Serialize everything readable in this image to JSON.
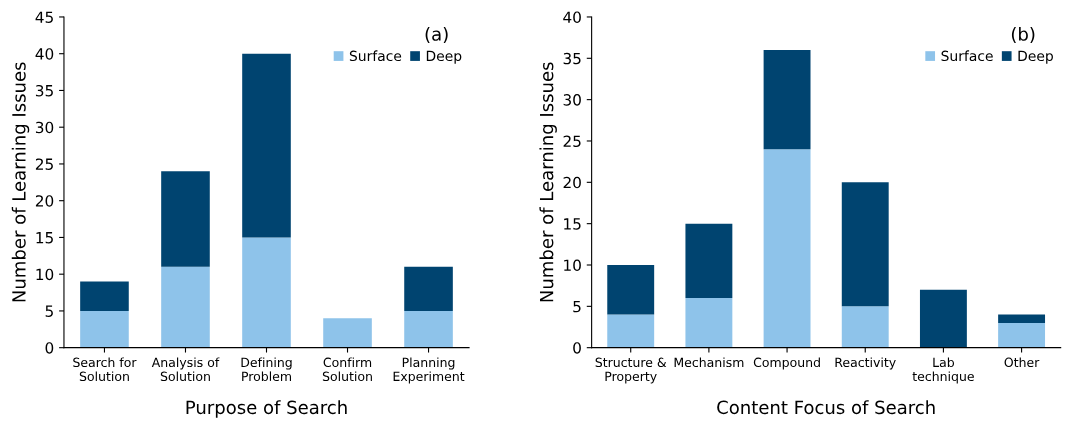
{
  "chart_data": [
    {
      "type": "bar",
      "stacked": true,
      "xlabel": "Purpose of Search",
      "ylabel": "Number of Learning Issues",
      "annotations": [
        "(a)"
      ],
      "categories": [
        "Search for\nSolution",
        "Analysis of\nSolution",
        "Defining\nProblem",
        "Confirm\nSolution",
        "Planning\nExperiment"
      ],
      "series": [
        {
          "name": "Surface",
          "color": "#8ec3ea",
          "values": [
            5,
            11,
            15,
            4,
            5
          ]
        },
        {
          "name": "Deep",
          "color": "#004470",
          "values": [
            4,
            13,
            25,
            0,
            6
          ]
        }
      ],
      "ylim": [
        0,
        45
      ],
      "yticks": [
        0,
        5,
        10,
        15,
        20,
        25,
        30,
        35,
        40,
        45
      ],
      "grid": false,
      "legend": "top right"
    },
    {
      "type": "bar",
      "stacked": true,
      "xlabel": "Content Focus of Search",
      "ylabel": "Number of Learning Issues",
      "annotations": [
        "(b)"
      ],
      "categories": [
        "Structure &\nProperty",
        "Mechanism",
        "Compound",
        "Reactivity",
        "Lab\ntechnique",
        "Other"
      ],
      "series": [
        {
          "name": "Surface",
          "color": "#8ec3ea",
          "values": [
            4,
            6,
            24,
            5,
            0,
            3
          ]
        },
        {
          "name": "Deep",
          "color": "#004470",
          "values": [
            6,
            9,
            12,
            15,
            7,
            1
          ]
        }
      ],
      "ylim": [
        0,
        40
      ],
      "yticks": [
        0,
        5,
        10,
        15,
        20,
        25,
        30,
        35,
        40
      ],
      "grid": false,
      "legend": "top right"
    }
  ]
}
